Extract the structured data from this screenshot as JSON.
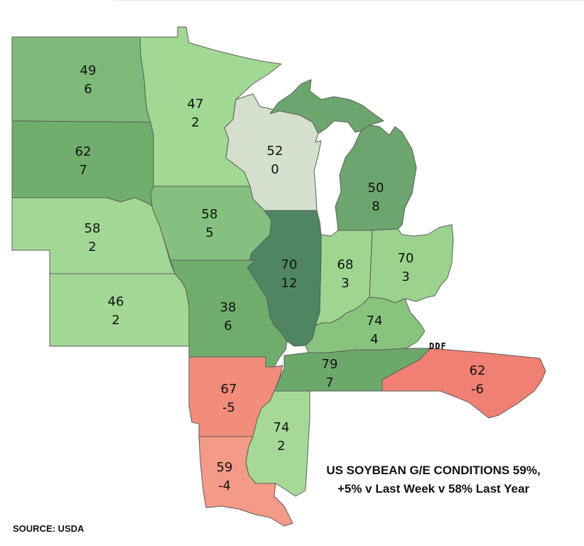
{
  "states": [
    {
      "id": "ND",
      "rating": "49",
      "change": "6",
      "color": "#7eb97a"
    },
    {
      "id": "SD",
      "rating": "62",
      "change": "7",
      "color": "#70ae6d"
    },
    {
      "id": "NE",
      "rating": "58",
      "change": "2",
      "color": "#a3d796"
    },
    {
      "id": "KS",
      "rating": "46",
      "change": "2",
      "color": "#a3d796"
    },
    {
      "id": "MN",
      "rating": "47",
      "change": "2",
      "color": "#a0d894"
    },
    {
      "id": "WI",
      "rating": "52",
      "change": "0",
      "color": "#d4e0cc"
    },
    {
      "id": "IA",
      "rating": "58",
      "change": "5",
      "color": "#86c07e"
    },
    {
      "id": "MO",
      "rating": "38",
      "change": "6",
      "color": "#70ad6c"
    },
    {
      "id": "IL",
      "rating": "70",
      "change": "12",
      "color": "#4f8661"
    },
    {
      "id": "MI",
      "rating": "50",
      "change": "8",
      "color": "#6ca56d"
    },
    {
      "id": "IN",
      "rating": "68",
      "change": "3",
      "color": "#9ed591"
    },
    {
      "id": "OH",
      "rating": "70",
      "change": "3",
      "color": "#9bd28e"
    },
    {
      "id": "KY",
      "rating": "74",
      "change": "4",
      "color": "#89c47f"
    },
    {
      "id": "TN",
      "rating": "79",
      "change": "7",
      "color": "#6da86b"
    },
    {
      "id": "NC",
      "rating": "62",
      "change": "-6",
      "color": "#f07f74"
    },
    {
      "id": "AR",
      "rating": "67",
      "change": "-5",
      "color": "#f28c7b"
    },
    {
      "id": "MS",
      "rating": "74",
      "change": "2",
      "color": "#a6d997"
    },
    {
      "id": "LA",
      "rating": "59",
      "change": "-4",
      "color": "#f49a88"
    }
  ],
  "note": {
    "line1": "US SOYBEAN G/E CONDITIONS 59%,",
    "line2": "+5% v Last Week v 58% Last Year"
  },
  "source": "SOURCE: USDA",
  "logo": "DDF"
}
